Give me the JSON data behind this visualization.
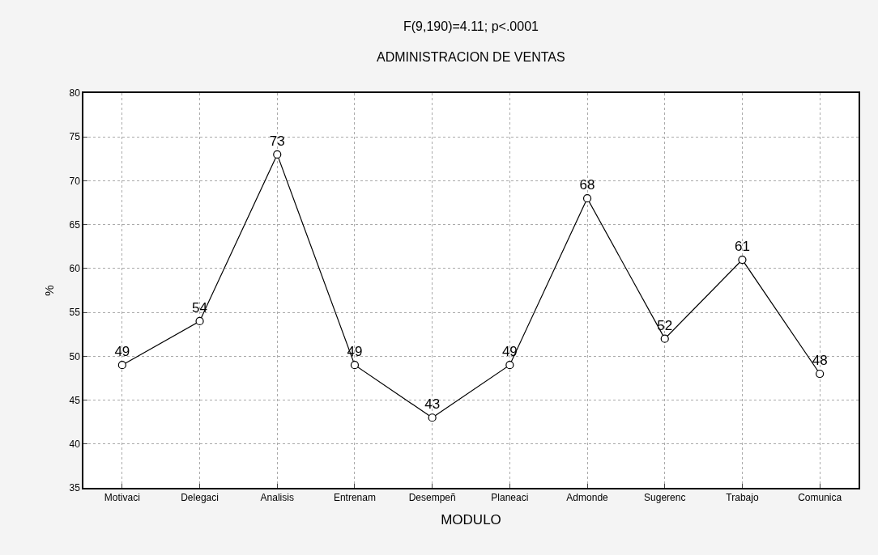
{
  "chart_data": {
    "type": "line",
    "title": "F(9,190)=4.11; p<.0001",
    "subtitle": "ADMINISTRACION DE VENTAS",
    "xlabel": "MODULO",
    "ylabel": "%",
    "categories": [
      "Motivaci",
      "Delegaci",
      "Analisis",
      "Entrenam",
      "Desempeñ",
      "Planeaci",
      "Admonde",
      "Sugerenc",
      "Trabajo",
      "Comunica"
    ],
    "series": [
      {
        "color": "#000000",
        "values": [
          49,
          54,
          73,
          49,
          43,
          49,
          68,
          52,
          61,
          48
        ]
      }
    ],
    "ylim": [
      35,
      80
    ],
    "yticks": [
      35,
      40,
      45,
      50,
      55,
      60,
      65,
      70,
      75,
      80
    ],
    "grid": true,
    "data_labels": true,
    "marker": "circle",
    "line_style": "solid"
  }
}
